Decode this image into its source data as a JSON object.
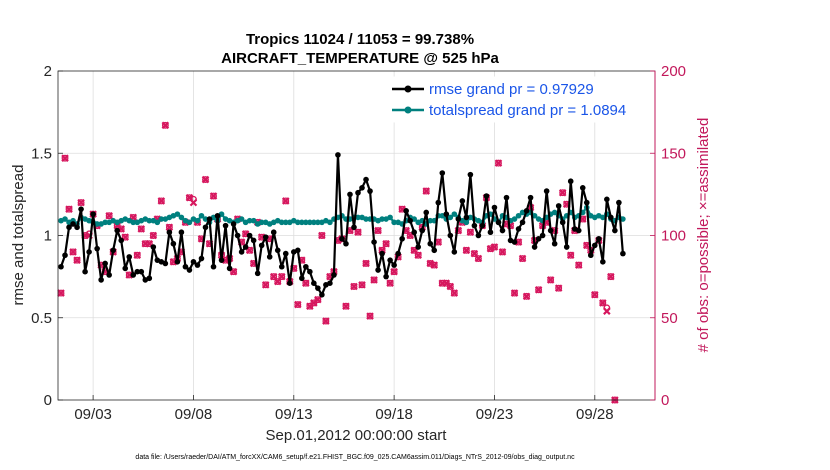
{
  "chart_data": {
    "type": "line",
    "title_line1": "Tropics 11024 / 11053 = 99.738%",
    "title_line2": "AIRCRAFT_TEMPERATURE @ 525 hPa",
    "xlabel": "Sep.01,2012 00:00:00 start",
    "ylabel_left": "rmse and totalspread",
    "ylabel_right": "# of obs: o=possible; ×=assimilated",
    "footnote": "data file: /Users/raeder/DAI/ATM_forcXX/CAM6_setup/f.e21.FHIST_BGC.f09_025.CAM6assim.011/Diags_NTrS_2012-09/obs_diag_output.nc",
    "xlim": [
      1.25,
      31.0
    ],
    "ylim_left": [
      0,
      2
    ],
    "ylim_right": [
      0,
      200
    ],
    "yticks_left": [
      "0",
      "0.5",
      "1",
      "1.5",
      "2"
    ],
    "yticks_right": [
      "0",
      "50",
      "100",
      "150",
      "200"
    ],
    "xticks": [
      {
        "x": 3,
        "label": "09/03"
      },
      {
        "x": 8,
        "label": "09/08"
      },
      {
        "x": 13,
        "label": "09/13"
      },
      {
        "x": 18,
        "label": "09/18"
      },
      {
        "x": 23,
        "label": "09/23"
      },
      {
        "x": 28,
        "label": "09/28"
      }
    ],
    "series": [
      {
        "name": "rmse grand pr = 0.97929",
        "color": "#000000",
        "values": [
          0.72,
          0.9,
          0.81,
          0.88,
          1.05,
          1.07,
          1.05,
          1.16,
          0.78,
          0.9,
          1.13,
          0.92,
          0.73,
          0.83,
          0.76,
          0.91,
          1.03,
          0.97,
          0.8,
          0.87,
          0.76,
          0.78,
          0.78,
          0.73,
          0.74,
          0.93,
          0.85,
          0.84,
          0.83,
          1.02,
          0.95,
          0.84,
          1.02,
          0.81,
          0.79,
          0.84,
          0.82,
          0.86,
          1.05,
          1.1,
          0.81,
          1.12,
          0.85,
          1.06,
          0.8,
          1.07,
          1.0,
          0.9,
          0.93,
          1.0,
          0.97,
          0.77,
          0.94,
          0.99,
          0.87,
          1.02,
          0.91,
          0.81,
          0.89,
          0.71,
          0.9,
          0.91,
          0.74,
          0.81,
          0.78,
          0.71,
          0.68,
          0.64,
          0.7,
          0.71,
          0.76,
          1.49,
          0.98,
          0.95,
          1.25,
          1.05,
          1.26,
          1.29,
          1.34,
          1.27,
          0.96,
          0.79,
          0.89,
          0.75,
          0.85,
          0.82,
          0.89,
          0.98,
          1.15,
          1.09,
          1.02,
          0.93,
          1.03,
          1.14,
          0.95,
          0.91,
          1.2,
          1.38,
          1.13,
          1.0,
          0.9,
          1.1,
          1.21,
          1.11,
          1.37,
          1.06,
          1.0,
          1.06,
          1.24,
          1.02,
          1.17,
          1.08,
          1.03,
          1.23,
          0.97,
          0.96,
          1.04,
          1.08,
          1.15,
          1.23,
          0.93,
          0.98,
          1.0,
          1.27,
          1.03,
          0.95,
          1.18,
          1.08,
          0.93,
          1.33,
          1.04,
          1.03,
          1.29,
          1.2,
          0.88,
          0.94,
          0.98,
          0.84,
          1.22,
          1.11,
          1.03,
          1.2,
          0.89
        ]
      },
      {
        "name": "totalspread grand pr = 1.0894",
        "color": "#00807f",
        "values": [
          1.1,
          1.11,
          1.09,
          1.1,
          1.08,
          1.09,
          1.07,
          1.11,
          1.1,
          1.09,
          1.08,
          1.07,
          1.07,
          1.08,
          1.08,
          1.09,
          1.08,
          1.09,
          1.1,
          1.09,
          1.08,
          1.08,
          1.09,
          1.1,
          1.09,
          1.09,
          1.08,
          1.1,
          1.1,
          1.11,
          1.12,
          1.13,
          1.11,
          1.09,
          1.08,
          1.1,
          1.09,
          1.12,
          1.1,
          1.08,
          1.11,
          1.09,
          1.13,
          1.1,
          1.09,
          1.08,
          1.09,
          1.1,
          1.08,
          1.09,
          1.09,
          1.07,
          1.08,
          1.08,
          1.07,
          1.08,
          1.09,
          1.08,
          1.08,
          1.08,
          1.09,
          1.08,
          1.08,
          1.08,
          1.08,
          1.08,
          1.08,
          1.08,
          1.09,
          1.08,
          1.1,
          1.11,
          1.12,
          1.1,
          1.1,
          1.11,
          1.11,
          1.11,
          1.1,
          1.1,
          1.1,
          1.09,
          1.1,
          1.1,
          1.11,
          1.08,
          1.08,
          1.07,
          1.09,
          1.11,
          1.1,
          1.08,
          1.09,
          1.07,
          1.09,
          1.09,
          1.12,
          1.12,
          1.1,
          1.11,
          1.13,
          1.11,
          1.09,
          1.08,
          1.11,
          1.1,
          1.09,
          1.08,
          1.12,
          1.13,
          1.1,
          1.08,
          1.12,
          1.11,
          1.09,
          1.1,
          1.12,
          1.14,
          1.13,
          1.14,
          1.12,
          1.1,
          1.09,
          1.11,
          1.13,
          1.14,
          1.12,
          1.1,
          1.12,
          1.14,
          1.11,
          1.12,
          1.14,
          1.17,
          1.12,
          1.11,
          1.12,
          1.11,
          1.13,
          1.1,
          1.09,
          1.11,
          1.1
        ]
      },
      {
        "name": "obs possible",
        "color": "#d6175e",
        "values": [
          121,
          95,
          65,
          147,
          116,
          90,
          85,
          120,
          100,
          101,
          113,
          106,
          82,
          78,
          112,
          90,
          106,
          104,
          99,
          76,
          111,
          88,
          104,
          95,
          95,
          100,
          110,
          121,
          167,
          105,
          84,
          86,
          90,
          108,
          123,
          122,
          108,
          98,
          134,
          95,
          124,
          110,
          88,
          85,
          86,
          78,
          110,
          96,
          101,
          91,
          83,
          108,
          99,
          70,
          98,
          75,
          72,
          75,
          121,
          72,
          80,
          58,
          85,
          71,
          57,
          59,
          61,
          100,
          48,
          75,
          78,
          97,
          98,
          57,
          103,
          69,
          102,
          70,
          83,
          51,
          73,
          103,
          91,
          95,
          71,
          78,
          87,
          116,
          103,
          100,
          91,
          88,
          105,
          127,
          83,
          82,
          96,
          71,
          71,
          69,
          65,
          103,
          108,
          91,
          102,
          89,
          86,
          106,
          123,
          92,
          93,
          144,
          90,
          107,
          106,
          65,
          96,
          86,
          63,
          117,
          97,
          67,
          106,
          108,
          73,
          103,
          68,
          126,
          119,
          88,
          103,
          82,
          110,
          94,
          91,
          64,
          97,
          59,
          56,
          75,
          0
        ]
      },
      {
        "name": "obs assimilated",
        "color": "#d6175e",
        "values": [
          121,
          95,
          65,
          147,
          116,
          90,
          85,
          120,
          100,
          100,
          113,
          106,
          82,
          78,
          112,
          90,
          106,
          104,
          99,
          76,
          111,
          88,
          104,
          95,
          95,
          100,
          110,
          121,
          167,
          105,
          84,
          86,
          90,
          108,
          123,
          120,
          108,
          98,
          134,
          95,
          124,
          110,
          88,
          85,
          86,
          78,
          110,
          96,
          101,
          91,
          83,
          108,
          99,
          70,
          98,
          75,
          72,
          75,
          121,
          72,
          80,
          58,
          85,
          71,
          57,
          59,
          61,
          100,
          48,
          75,
          78,
          97,
          98,
          57,
          103,
          69,
          102,
          70,
          83,
          51,
          73,
          103,
          91,
          95,
          71,
          78,
          87,
          116,
          103,
          100,
          91,
          88,
          105,
          127,
          83,
          82,
          96,
          71,
          71,
          69,
          65,
          103,
          108,
          91,
          102,
          89,
          86,
          106,
          123,
          92,
          93,
          144,
          90,
          107,
          106,
          65,
          96,
          86,
          63,
          117,
          97,
          67,
          106,
          108,
          73,
          103,
          68,
          126,
          119,
          88,
          103,
          82,
          110,
          94,
          91,
          64,
          97,
          59,
          54,
          75,
          0
        ]
      }
    ],
    "legend_position": "top-right"
  }
}
